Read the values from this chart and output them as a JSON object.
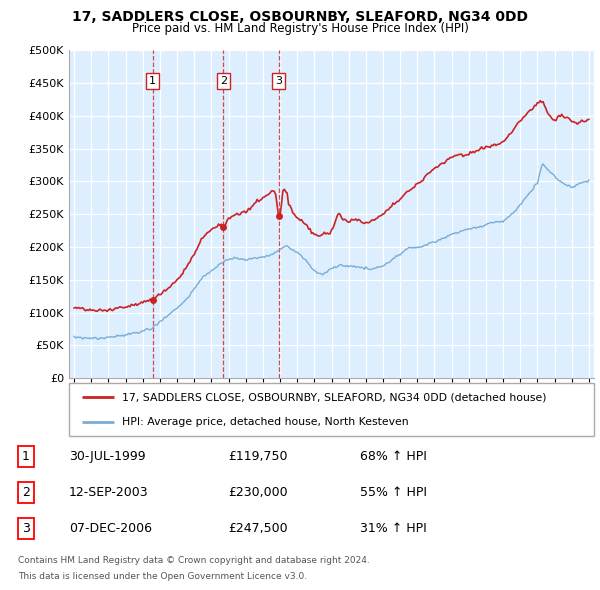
{
  "title": "17, SADDLERS CLOSE, OSBOURNBY, SLEAFORD, NG34 0DD",
  "subtitle": "Price paid vs. HM Land Registry's House Price Index (HPI)",
  "legend_line1": "17, SADDLERS CLOSE, OSBOURNBY, SLEAFORD, NG34 0DD (detached house)",
  "legend_line2": "HPI: Average price, detached house, North Kesteven",
  "footer1": "Contains HM Land Registry data © Crown copyright and database right 2024.",
  "footer2": "This data is licensed under the Open Government Licence v3.0.",
  "transactions": [
    {
      "label": "1",
      "date": "30-JUL-1999",
      "price": "£119,750",
      "hpi_change": "68% ↑ HPI",
      "year": 1999.57
    },
    {
      "label": "2",
      "date": "12-SEP-2003",
      "price": "£230,000",
      "hpi_change": "55% ↑ HPI",
      "year": 2003.7
    },
    {
      "label": "3",
      "date": "07-DEC-2006",
      "price": "£247,500",
      "hpi_change": "31% ↑ HPI",
      "year": 2006.93
    }
  ],
  "transaction_values": [
    119750,
    230000,
    247500
  ],
  "hpi_color": "#7aadd4",
  "price_color": "#cc2222",
  "vline_color": "#cc2222",
  "shade_color": "#ddeeff",
  "background_color": "#ffffff",
  "grid_color": "#cccccc",
  "ylim": [
    0,
    500000
  ],
  "yticks": [
    0,
    50000,
    100000,
    150000,
    200000,
    250000,
    300000,
    350000,
    400000,
    450000,
    500000
  ],
  "xlim_start": 1994.7,
  "xlim_end": 2025.3
}
